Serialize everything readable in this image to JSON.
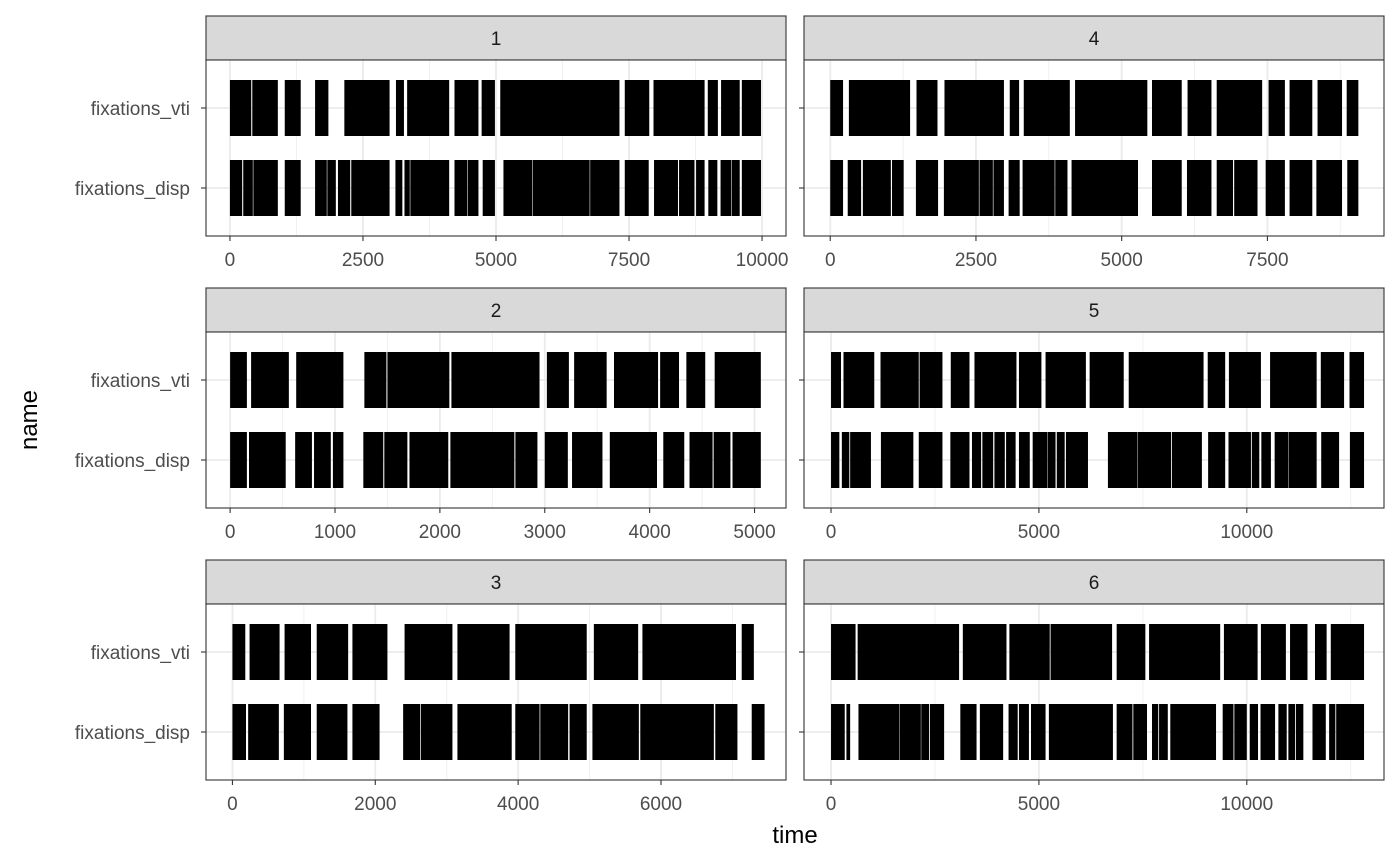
{
  "chart_data": {
    "type": "bar",
    "xlabel": "time",
    "ylabel": "name",
    "categories": [
      "fixations_vti",
      "fixations_disp"
    ],
    "grid": true,
    "facets": [
      {
        "title": "1",
        "xlim": [
          -450,
          10450
        ],
        "xticks": [
          0,
          2500,
          5000,
          7500,
          10000
        ],
        "xtick_labels": [
          "0",
          "2500",
          "5000",
          "7500",
          "10000"
        ],
        "series": [
          {
            "name": "fixations_vti",
            "segments": [
              [
                0,
                400
              ],
              [
                420,
                900
              ],
              [
                1030,
                1330
              ],
              [
                1600,
                1850
              ],
              [
                2150,
                3000
              ],
              [
                3120,
                3270
              ],
              [
                3330,
                4120
              ],
              [
                4220,
                4670
              ],
              [
                4730,
                4980
              ],
              [
                5080,
                7320
              ],
              [
                7420,
                7880
              ],
              [
                7960,
                8920
              ],
              [
                8980,
                9170
              ],
              [
                9230,
                9580
              ],
              [
                9620,
                9980
              ]
            ]
          },
          {
            "name": "fixations_disp",
            "segments": [
              [
                0,
                230
              ],
              [
                250,
                430
              ],
              [
                440,
                900
              ],
              [
                1030,
                1330
              ],
              [
                1600,
                1820
              ],
              [
                1830,
                1990
              ],
              [
                2030,
                2260
              ],
              [
                2280,
                3000
              ],
              [
                3110,
                3240
              ],
              [
                3280,
                3380
              ],
              [
                3390,
                4120
              ],
              [
                4220,
                4460
              ],
              [
                4470,
                4670
              ],
              [
                4750,
                4980
              ],
              [
                5140,
                5680
              ],
              [
                5690,
                6760
              ],
              [
                6770,
                7320
              ],
              [
                7420,
                7870
              ],
              [
                7970,
                8420
              ],
              [
                8440,
                8730
              ],
              [
                8760,
                8920
              ],
              [
                8990,
                9160
              ],
              [
                9220,
                9420
              ],
              [
                9430,
                9580
              ],
              [
                9620,
                9980
              ]
            ]
          }
        ]
      },
      {
        "title": "4",
        "xlim": [
          -450,
          9500
        ],
        "xticks": [
          0,
          2500,
          5000,
          7500
        ],
        "xtick_labels": [
          "0",
          "2500",
          "5000",
          "7500"
        ],
        "series": [
          {
            "name": "fixations_vti",
            "segments": [
              [
                0,
                220
              ],
              [
                320,
                1370
              ],
              [
                1480,
                1840
              ],
              [
                1960,
                2980
              ],
              [
                3080,
                3240
              ],
              [
                3320,
                4110
              ],
              [
                4200,
                5440
              ],
              [
                5520,
                6030
              ],
              [
                6130,
                6540
              ],
              [
                6630,
                7410
              ],
              [
                7520,
                7800
              ],
              [
                7880,
                8270
              ],
              [
                8360,
                8780
              ],
              [
                8860,
                9060
              ]
            ]
          },
          {
            "name": "fixations_disp",
            "segments": [
              [
                0,
                220
              ],
              [
                300,
                530
              ],
              [
                560,
                1040
              ],
              [
                1060,
                1260
              ],
              [
                1470,
                1850
              ],
              [
                1950,
                2550
              ],
              [
                2560,
                2790
              ],
              [
                2800,
                2980
              ],
              [
                3060,
                3250
              ],
              [
                3300,
                3850
              ],
              [
                3860,
                4070
              ],
              [
                4140,
                5280
              ],
              [
                5520,
                6030
              ],
              [
                6120,
                6540
              ],
              [
                6630,
                6910
              ],
              [
                6930,
                7330
              ],
              [
                7470,
                7800
              ],
              [
                7880,
                8270
              ],
              [
                8340,
                8780
              ],
              [
                8870,
                9060
              ]
            ]
          }
        ]
      },
      {
        "title": "2",
        "xlim": [
          -230,
          5300
        ],
        "xticks": [
          0,
          1000,
          2000,
          3000,
          4000,
          5000
        ],
        "xtick_labels": [
          "0",
          "1000",
          "2000",
          "3000",
          "4000",
          "5000"
        ],
        "series": [
          {
            "name": "fixations_vti",
            "segments": [
              [
                0,
                160
              ],
              [
                200,
                560
              ],
              [
                630,
                1080
              ],
              [
                1280,
                1490
              ],
              [
                1500,
                2090
              ],
              [
                2110,
                2950
              ],
              [
                3020,
                3230
              ],
              [
                3280,
                3590
              ],
              [
                3660,
                4080
              ],
              [
                4100,
                4280
              ],
              [
                4350,
                4530
              ],
              [
                4620,
                5060
              ]
            ]
          },
          {
            "name": "fixations_disp",
            "segments": [
              [
                0,
                160
              ],
              [
                180,
                530
              ],
              [
                620,
                780
              ],
              [
                800,
                960
              ],
              [
                980,
                1080
              ],
              [
                1270,
                1460
              ],
              [
                1470,
                1690
              ],
              [
                1710,
                2080
              ],
              [
                2100,
                2710
              ],
              [
                2720,
                2930
              ],
              [
                3000,
                3220
              ],
              [
                3260,
                3550
              ],
              [
                3620,
                4070
              ],
              [
                4130,
                4330
              ],
              [
                4380,
                4600
              ],
              [
                4610,
                4770
              ],
              [
                4790,
                5060
              ]
            ]
          }
        ]
      },
      {
        "title": "5",
        "xlim": [
          -650,
          13300
        ],
        "xticks": [
          0,
          5000,
          10000
        ],
        "xtick_labels": [
          "0",
          "5000",
          "10000"
        ],
        "series": [
          {
            "name": "fixations_vti",
            "segments": [
              [
                0,
                240
              ],
              [
                300,
                1040
              ],
              [
                1190,
                2110
              ],
              [
                2130,
                2680
              ],
              [
                2880,
                3330
              ],
              [
                3450,
                4460
              ],
              [
                4520,
                5060
              ],
              [
                5160,
                6130
              ],
              [
                6220,
                7040
              ],
              [
                7160,
                8960
              ],
              [
                9060,
                9480
              ],
              [
                9570,
                10340
              ],
              [
                10560,
                11680
              ],
              [
                11780,
                12340
              ],
              [
                12470,
                12820
              ]
            ]
          },
          {
            "name": "fixations_disp",
            "segments": [
              [
                0,
                200
              ],
              [
                260,
                440
              ],
              [
                460,
                960
              ],
              [
                1200,
                1980
              ],
              [
                2110,
                2680
              ],
              [
                2870,
                3330
              ],
              [
                3390,
                3610
              ],
              [
                3640,
                3900
              ],
              [
                3930,
                4180
              ],
              [
                4210,
                4440
              ],
              [
                4520,
                4780
              ],
              [
                4850,
                5200
              ],
              [
                5210,
                5400
              ],
              [
                5430,
                5620
              ],
              [
                5650,
                6180
              ],
              [
                6660,
                7360
              ],
              [
                7370,
                8180
              ],
              [
                8200,
                8920
              ],
              [
                9070,
                9480
              ],
              [
                9560,
                10100
              ],
              [
                10120,
                10300
              ],
              [
                10350,
                10580
              ],
              [
                10670,
                11000
              ],
              [
                11010,
                11680
              ],
              [
                11790,
                12220
              ],
              [
                12480,
                12820
              ]
            ]
          }
        ]
      },
      {
        "title": "3",
        "xlim": [
          -370,
          7750
        ],
        "xticks": [
          0,
          2000,
          4000,
          6000
        ],
        "xtick_labels": [
          "0",
          "2000",
          "4000",
          "6000"
        ],
        "series": [
          {
            "name": "fixations_vti",
            "segments": [
              [
                0,
                180
              ],
              [
                240,
                660
              ],
              [
                730,
                1100
              ],
              [
                1180,
                1620
              ],
              [
                1680,
                2170
              ],
              [
                2410,
                3080
              ],
              [
                3150,
                3880
              ],
              [
                3960,
                4960
              ],
              [
                5060,
                5680
              ],
              [
                5740,
                7050
              ],
              [
                7130,
                7300
              ]
            ]
          },
          {
            "name": "fixations_disp",
            "segments": [
              [
                0,
                190
              ],
              [
                220,
                650
              ],
              [
                720,
                1100
              ],
              [
                1180,
                1610
              ],
              [
                1680,
                2060
              ],
              [
                2390,
                2630
              ],
              [
                2640,
                3080
              ],
              [
                3150,
                3910
              ],
              [
                3960,
                4300
              ],
              [
                4310,
                4700
              ],
              [
                4720,
                4960
              ],
              [
                5040,
                5690
              ],
              [
                5710,
                6740
              ],
              [
                6760,
                7070
              ],
              [
                7270,
                7450
              ]
            ]
          }
        ]
      },
      {
        "title": "6",
        "xlim": [
          -650,
          13300
        ],
        "xticks": [
          0,
          5000,
          10000
        ],
        "xtick_labels": [
          "0",
          "5000",
          "10000"
        ],
        "series": [
          {
            "name": "fixations_vti",
            "segments": [
              [
                0,
                590
              ],
              [
                640,
                3080
              ],
              [
                3170,
                4220
              ],
              [
                4290,
                5260
              ],
              [
                5280,
                6760
              ],
              [
                6870,
                7560
              ],
              [
                7650,
                9360
              ],
              [
                9450,
                10260
              ],
              [
                10340,
                10940
              ],
              [
                11040,
                11460
              ],
              [
                11640,
                11920
              ],
              [
                12020,
                12820
              ]
            ]
          },
          {
            "name": "fixations_disp",
            "segments": [
              [
                0,
                330
              ],
              [
                370,
                460
              ],
              [
                660,
                1640
              ],
              [
                1650,
                2160
              ],
              [
                2170,
                2360
              ],
              [
                2380,
                2720
              ],
              [
                3110,
                3500
              ],
              [
                3580,
                4140
              ],
              [
                4270,
                4490
              ],
              [
                4520,
                4760
              ],
              [
                4810,
                5160
              ],
              [
                5240,
                6780
              ],
              [
                6870,
                7250
              ],
              [
                7270,
                7600
              ],
              [
                7720,
                7870
              ],
              [
                7890,
                8100
              ],
              [
                8160,
                9260
              ],
              [
                9420,
                9680
              ],
              [
                9700,
                10000
              ],
              [
                10070,
                10270
              ],
              [
                10330,
                10680
              ],
              [
                10760,
                10960
              ],
              [
                11000,
                11160
              ],
              [
                11180,
                11360
              ],
              [
                11580,
                11900
              ],
              [
                11980,
                12130
              ],
              [
                12150,
                12820
              ]
            ]
          }
        ]
      }
    ]
  }
}
